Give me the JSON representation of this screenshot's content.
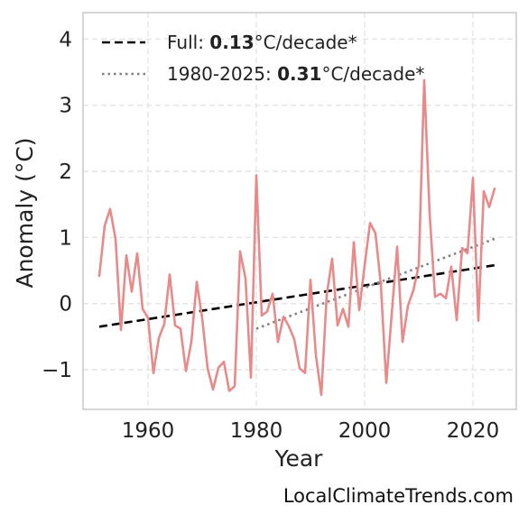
{
  "chart_data": {
    "type": "line",
    "xlabel": "Year",
    "ylabel": "Anomaly (°C)",
    "xlim": [
      1948,
      2028
    ],
    "ylim": [
      -1.6,
      4.4
    ],
    "x_ticks": [
      1960,
      1980,
      2000,
      2020
    ],
    "y_ticks": [
      4,
      3,
      2,
      1,
      0,
      -1
    ],
    "y_tick_labels": [
      "4",
      "3",
      "2",
      "1",
      "0",
      "−1"
    ],
    "grid": true,
    "legend_position": "top-left",
    "series": [
      {
        "kind": "data",
        "color": "#e88a8a",
        "x": [
          1951,
          1952,
          1953,
          1954,
          1955,
          1956,
          1957,
          1958,
          1959,
          1960,
          1961,
          1962,
          1963,
          1964,
          1965,
          1966,
          1967,
          1968,
          1969,
          1970,
          1971,
          1972,
          1973,
          1974,
          1975,
          1976,
          1977,
          1978,
          1979,
          1980,
          1981,
          1982,
          1983,
          1984,
          1985,
          1986,
          1987,
          1988,
          1989,
          1990,
          1991,
          1992,
          1993,
          1994,
          1995,
          1996,
          1997,
          1998,
          1999,
          2000,
          2001,
          2002,
          2003,
          2004,
          2005,
          2006,
          2007,
          2008,
          2009,
          2010,
          2011,
          2012,
          2013,
          2014,
          2015,
          2016,
          2017,
          2018,
          2019,
          2020,
          2021,
          2022,
          2023,
          2024
        ],
        "y": [
          0.42,
          1.18,
          1.43,
          0.98,
          -0.4,
          0.73,
          0.18,
          0.76,
          -0.08,
          -0.22,
          -1.05,
          -0.52,
          -0.31,
          0.44,
          -0.33,
          -0.38,
          -1.02,
          -0.58,
          0.33,
          -0.22,
          -0.98,
          -1.3,
          -0.97,
          -0.88,
          -1.32,
          -1.25,
          0.79,
          0.38,
          -1.12,
          1.94,
          -0.18,
          -0.12,
          0.15,
          -0.58,
          -0.2,
          -0.34,
          -0.54,
          -0.98,
          -1.05,
          0.36,
          -0.78,
          -1.38,
          0.13,
          0.68,
          -0.33,
          -0.08,
          -0.35,
          0.93,
          -0.1,
          0.58,
          1.22,
          1.06,
          0.28,
          -1.2,
          -0.16,
          0.86,
          -0.58,
          -0.03,
          0.2,
          0.58,
          3.38,
          1.36,
          0.1,
          0.15,
          0.08,
          0.56,
          -0.25,
          0.84,
          0.76,
          1.9,
          -0.26,
          1.7,
          1.46,
          1.74
        ]
      },
      {
        "kind": "trend",
        "name": "Full",
        "rate": "0.13",
        "unit_suffix": "°C/decade*",
        "style": "dashed",
        "color": "#000000",
        "x": [
          1951,
          2024
        ],
        "y": [
          -0.35,
          0.58
        ]
      },
      {
        "kind": "trend",
        "name": "1980-2025",
        "rate": "0.31",
        "unit_suffix": "°C/decade*",
        "style": "dotted",
        "color": "#808080",
        "x": [
          1980,
          2024
        ],
        "y": [
          -0.38,
          0.98
        ]
      }
    ],
    "legend": [
      {
        "prefix": "Full: ",
        "bold": "0.13",
        "suffix": "°C/decade*"
      },
      {
        "prefix": "1980-2025: ",
        "bold": "0.31",
        "suffix": "°C/decade*"
      }
    ]
  },
  "credit": "LocalClimateTrends.com",
  "colors": {
    "axis_frame": "#c8c8c8",
    "grid": "#e4e4e4"
  }
}
